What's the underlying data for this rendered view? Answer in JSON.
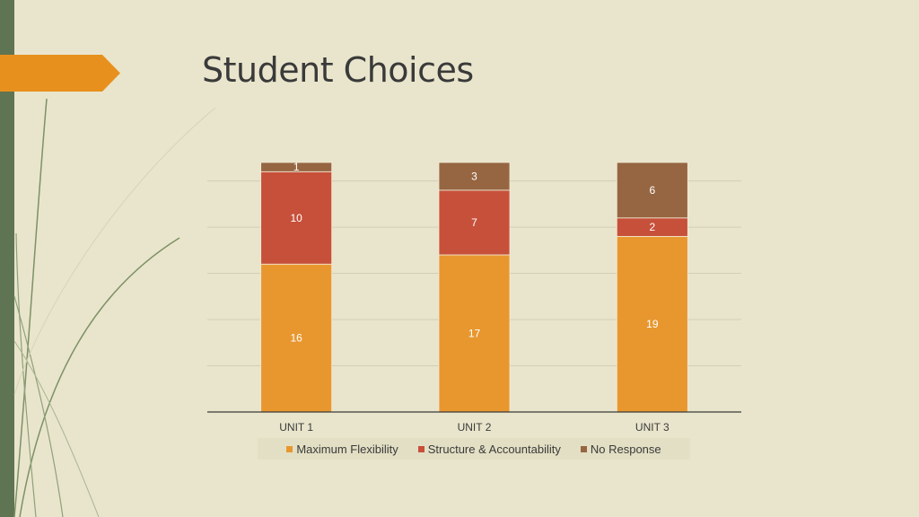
{
  "slide": {
    "title": "Student Choices"
  },
  "colors": {
    "background": "#e9e5cc",
    "accent_tab": "#e8901e",
    "left_bar": "#5f7452"
  },
  "chart_data": {
    "type": "bar",
    "stacked": true,
    "categories": [
      "UNIT 1",
      "UNIT 2",
      "UNIT 3"
    ],
    "series": [
      {
        "name": "Maximum Flexibility",
        "values": [
          16,
          17,
          19
        ],
        "color": "#e8972f"
      },
      {
        "name": "Structure & Accountability",
        "values": [
          10,
          7,
          2
        ],
        "color": "#c7503a"
      },
      {
        "name": "No Response",
        "values": [
          1,
          3,
          6
        ],
        "color": "#966642"
      }
    ],
    "ylim": [
      0,
      27
    ],
    "grid": true,
    "legend_position": "bottom"
  }
}
